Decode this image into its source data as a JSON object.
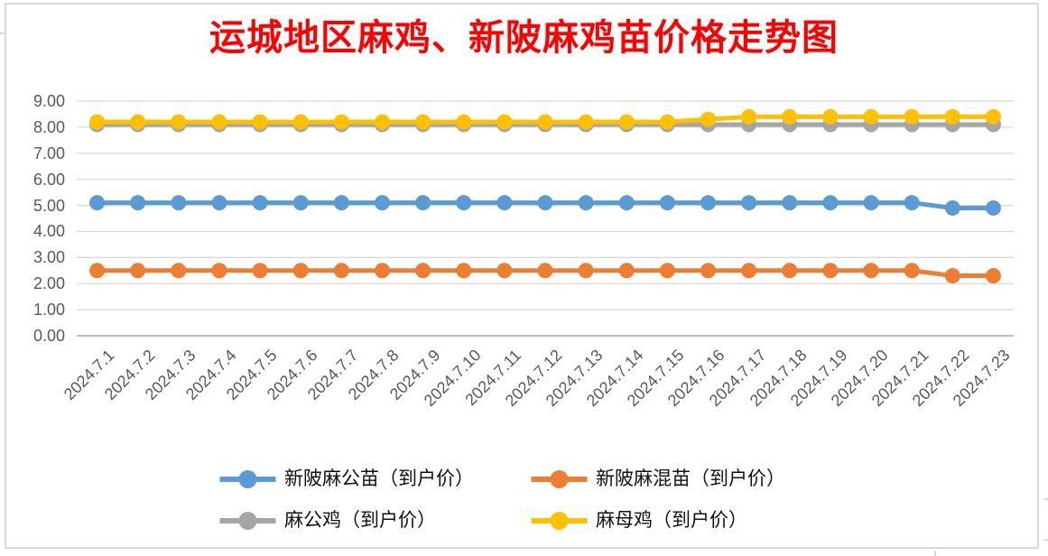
{
  "chart_data": {
    "type": "line",
    "title": "运城地区麻鸡、新陂麻鸡苗价格走势图",
    "title_color": "#FF0000",
    "xlabel": "",
    "ylabel": "",
    "ylim": [
      0,
      9
    ],
    "y_tick_step": 1,
    "y_ticks": [
      "0.00",
      "1.00",
      "2.00",
      "3.00",
      "4.00",
      "5.00",
      "6.00",
      "7.00",
      "8.00",
      "9.00"
    ],
    "grid": "horizontal",
    "legend_position": "bottom",
    "categories": [
      "2024.7.1",
      "2024.7.2",
      "2024.7.3",
      "2024.7.4",
      "2024.7.5",
      "2024.7.6",
      "2024.7.7",
      "2024.7.8",
      "2024.7.9",
      "2024.7.10",
      "2024.7.11",
      "2024.7.12",
      "2024.7.13",
      "2024.7.14",
      "2024.7.15",
      "2024.7.16",
      "2024.7.17",
      "2024.7.18",
      "2024.7.19",
      "2024.7.20",
      "2024.7.21",
      "2024.7.22",
      "2024.7.23"
    ],
    "series": [
      {
        "name": "新陂麻公苗（到户价）",
        "color": "#5B9BD5",
        "values": [
          5.1,
          5.1,
          5.1,
          5.1,
          5.1,
          5.1,
          5.1,
          5.1,
          5.1,
          5.1,
          5.1,
          5.1,
          5.1,
          5.1,
          5.1,
          5.1,
          5.1,
          5.1,
          5.1,
          5.1,
          5.1,
          4.9,
          4.9
        ]
      },
      {
        "name": "新陂麻混苗（到户价）",
        "color": "#ED7D31",
        "values": [
          2.5,
          2.5,
          2.5,
          2.5,
          2.5,
          2.5,
          2.5,
          2.5,
          2.5,
          2.5,
          2.5,
          2.5,
          2.5,
          2.5,
          2.5,
          2.5,
          2.5,
          2.5,
          2.5,
          2.5,
          2.5,
          2.3,
          2.3
        ]
      },
      {
        "name": "麻公鸡（到户价）",
        "color": "#A5A5A5",
        "values": [
          8.1,
          8.1,
          8.1,
          8.1,
          8.1,
          8.1,
          8.1,
          8.1,
          8.1,
          8.1,
          8.1,
          8.1,
          8.1,
          8.1,
          8.1,
          8.1,
          8.1,
          8.1,
          8.1,
          8.1,
          8.1,
          8.1,
          8.1
        ]
      },
      {
        "name": "麻母鸡（到户价）",
        "color": "#FFC000",
        "values": [
          8.2,
          8.2,
          8.2,
          8.2,
          8.2,
          8.2,
          8.2,
          8.2,
          8.2,
          8.2,
          8.2,
          8.2,
          8.2,
          8.2,
          8.2,
          8.3,
          8.4,
          8.4,
          8.4,
          8.4,
          8.4,
          8.4,
          8.4
        ]
      }
    ]
  },
  "colors": {
    "background": "#FFFFFF",
    "chart_border": "#D9D9D9",
    "gridline": "#D9D9D9",
    "axis_line": "#BFBFBF",
    "axis_text": "#595959",
    "legend_text": "#111111",
    "title": "#FF0000"
  }
}
